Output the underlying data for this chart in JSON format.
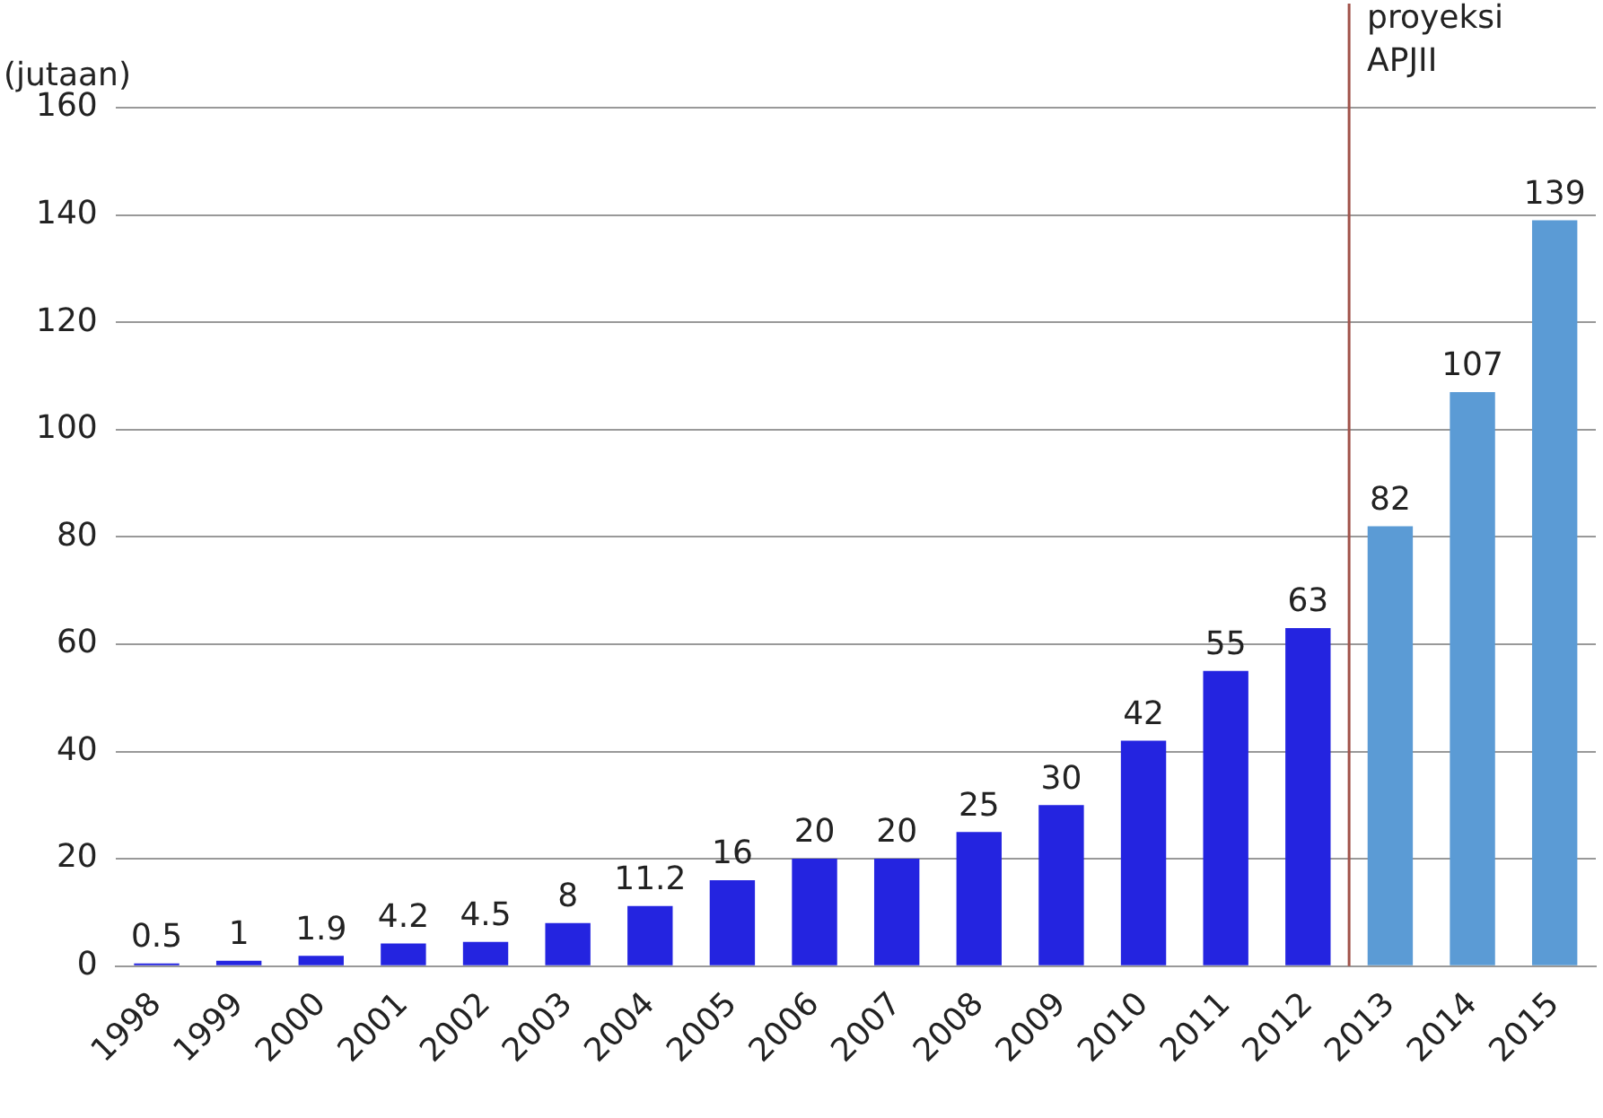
{
  "chart_data": {
    "type": "bar",
    "ylabel": "(jutaan)",
    "categories": [
      "1998",
      "1999",
      "2000",
      "2001",
      "2002",
      "2003",
      "2004",
      "2005",
      "2006",
      "2007",
      "2008",
      "2009",
      "2010",
      "2011",
      "2012",
      "2013",
      "2014",
      "2015"
    ],
    "values": [
      0.5,
      1,
      1.9,
      4.2,
      4.5,
      8,
      11.2,
      16,
      20,
      20,
      25,
      30,
      42,
      55,
      63,
      82,
      107,
      139
    ],
    "colors": [
      "#2424e0",
      "#2424e0",
      "#2424e0",
      "#2424e0",
      "#2424e0",
      "#2424e0",
      "#2424e0",
      "#2424e0",
      "#2424e0",
      "#2424e0",
      "#2424e0",
      "#2424e0",
      "#2424e0",
      "#2424e0",
      "#2424e0",
      "#5b9bd5",
      "#5b9bd5",
      "#5b9bd5"
    ],
    "ylim": [
      0,
      160
    ],
    "yticks": [
      0,
      20,
      40,
      60,
      80,
      100,
      120,
      140,
      160
    ],
    "grid": "y",
    "data_labels": true,
    "legend": false,
    "ref_lines": [
      {
        "axis": "x",
        "value": "2013",
        "label": "proyeksi APJII",
        "color": "#a0524a"
      }
    ]
  }
}
